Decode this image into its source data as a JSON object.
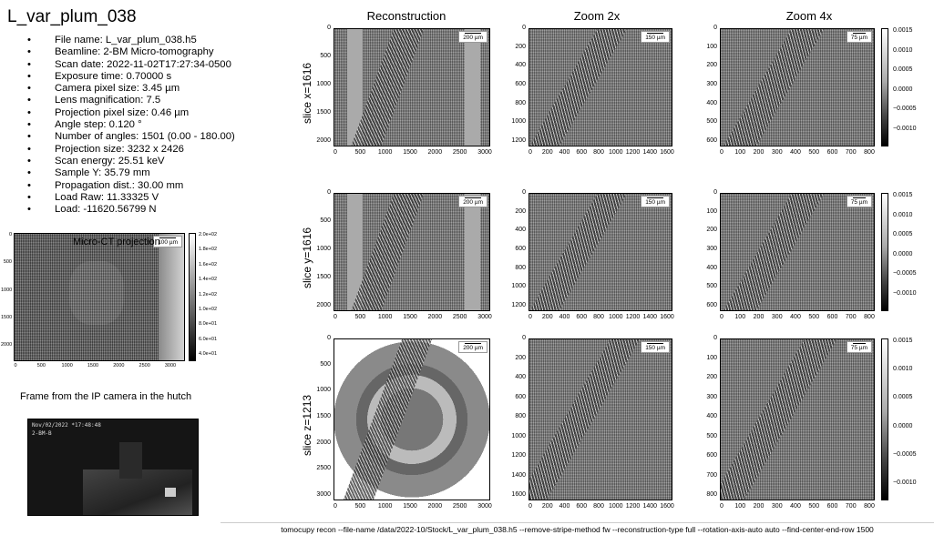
{
  "title": "L_var_plum_038",
  "metadata": [
    "File name: L_var_plum_038.h5",
    "Beamline: 2-BM Micro-tomography",
    "Scan date: 2022-11-02T17:27:34-0500",
    "Exposure time: 0.70000 s",
    "Camera pixel size: 3.45 µm",
    "Lens magnification: 7.5",
    "Projection pixel size: 0.46 µm",
    "Angle step: 0.120 °",
    "Number of angles: 1501 (0.00 - 180.00)",
    "Projection size: 3232 x 2426",
    "Scan energy: 25.51 keV",
    "Sample Y: 35.79 mm",
    "Propagation dist.: 30.00 mm",
    "Load Raw: 11.33325 V",
    "Load: -11620.56799 N"
  ],
  "projection": {
    "title": "Micro-CT projection",
    "yticks": [
      "0",
      "500",
      "1000",
      "1500",
      "2000"
    ],
    "xticks": [
      "0",
      "500",
      "1000",
      "1500",
      "2000",
      "2500",
      "3000"
    ],
    "colorbar_ticks": [
      "2.0e+02",
      "1.8e+02",
      "1.6e+02",
      "1.4e+02",
      "1.2e+02",
      "1.0e+02",
      "8.0e+01",
      "6.0e+01",
      "4.0e+01"
    ],
    "scalebar": "100 µm"
  },
  "camera": {
    "caption": "Frame from the IP camera in the hutch",
    "timestamp": "Nov/02/2022 *17:48:48",
    "label": "2-BM-B"
  },
  "columns": [
    "Reconstruction",
    "Zoom 2x",
    "Zoom 4x"
  ],
  "rows": [
    {
      "label": "slice x=1616",
      "recon": {
        "yticks": [
          "0",
          "500",
          "1000",
          "1500",
          "2000"
        ],
        "xticks": [
          "0",
          "500",
          "1000",
          "1500",
          "2000",
          "2500",
          "3000"
        ],
        "scalebar": "200 µm"
      },
      "zoom2": {
        "yticks": [
          "0",
          "200",
          "400",
          "600",
          "800",
          "1000",
          "1200"
        ],
        "xticks": [
          "0",
          "200",
          "400",
          "600",
          "800",
          "1000",
          "1200",
          "1400",
          "1600"
        ],
        "scalebar": "150 µm"
      },
      "zoom4": {
        "yticks": [
          "0",
          "100",
          "200",
          "300",
          "400",
          "500",
          "600"
        ],
        "xticks": [
          "0",
          "100",
          "200",
          "300",
          "400",
          "500",
          "600",
          "700",
          "800"
        ],
        "scalebar": "75 µm"
      },
      "colorbar": [
        "0.0015",
        "0.0010",
        "0.0005",
        "0.0000",
        "−0.0005",
        "−0.0010"
      ]
    },
    {
      "label": "slice y=1616",
      "recon": {
        "yticks": [
          "0",
          "500",
          "1000",
          "1500",
          "2000"
        ],
        "xticks": [
          "0",
          "500",
          "1000",
          "1500",
          "2000",
          "2500",
          "3000"
        ],
        "scalebar": "200 µm"
      },
      "zoom2": {
        "yticks": [
          "0",
          "200",
          "400",
          "600",
          "800",
          "1000",
          "1200"
        ],
        "xticks": [
          "0",
          "200",
          "400",
          "600",
          "800",
          "1000",
          "1200",
          "1400",
          "1600"
        ],
        "scalebar": "150 µm"
      },
      "zoom4": {
        "yticks": [
          "0",
          "100",
          "200",
          "300",
          "400",
          "500",
          "600"
        ],
        "xticks": [
          "0",
          "100",
          "200",
          "300",
          "400",
          "500",
          "600",
          "700",
          "800"
        ],
        "scalebar": "75 µm"
      },
      "colorbar": [
        "0.0015",
        "0.0010",
        "0.0005",
        "0.0000",
        "−0.0005",
        "−0.0010"
      ]
    },
    {
      "label": "slice z=1213",
      "recon": {
        "yticks": [
          "0",
          "500",
          "1000",
          "1500",
          "2000",
          "2500",
          "3000"
        ],
        "xticks": [
          "0",
          "500",
          "1000",
          "1500",
          "2000",
          "2500",
          "3000"
        ],
        "scalebar": "200 µm"
      },
      "zoom2": {
        "yticks": [
          "0",
          "200",
          "400",
          "600",
          "800",
          "1000",
          "1200",
          "1400",
          "1600"
        ],
        "xticks": [
          "0",
          "200",
          "400",
          "600",
          "800",
          "1000",
          "1200",
          "1400",
          "1600"
        ],
        "scalebar": "150 µm"
      },
      "zoom4": {
        "yticks": [
          "0",
          "100",
          "200",
          "300",
          "400",
          "500",
          "600",
          "700",
          "800"
        ],
        "xticks": [
          "0",
          "100",
          "200",
          "300",
          "400",
          "500",
          "600",
          "700",
          "800"
        ],
        "scalebar": "75 µm"
      },
      "colorbar": [
        "0.0015",
        "0.0010",
        "0.0005",
        "0.0000",
        "−0.0005",
        "−0.0010"
      ]
    }
  ],
  "command": "tomocupy recon --file-name /data/2022-10/Stock/L_var_plum_038.h5 --remove-stripe-method fw --reconstruction-type full --rotation-axis-auto auto --find-center-end-row 1500"
}
